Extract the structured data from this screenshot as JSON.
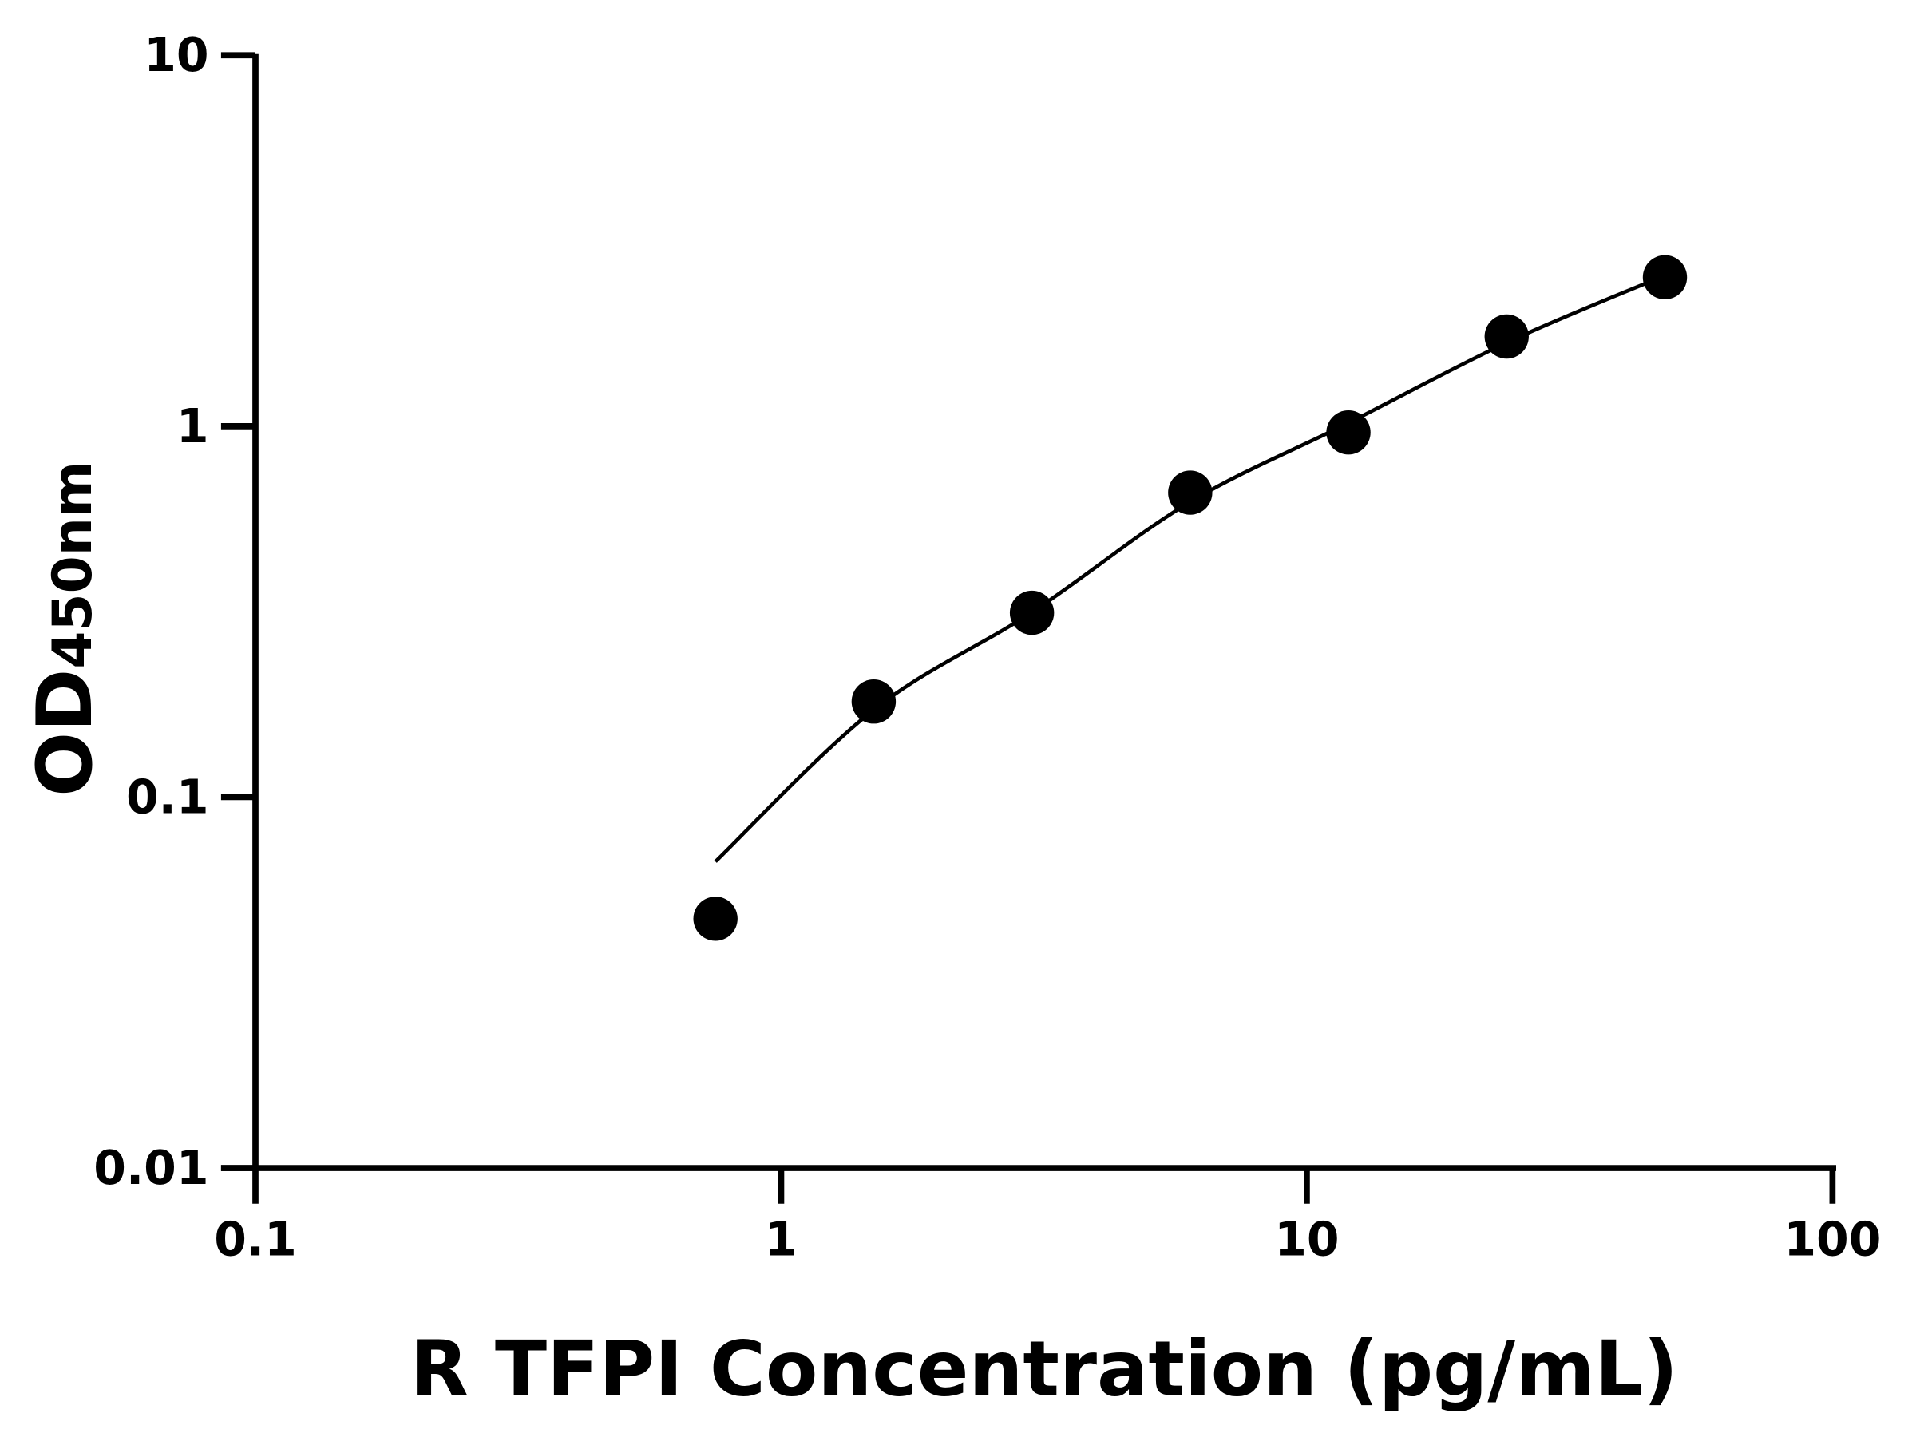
{
  "chart_data": {
    "type": "scatter",
    "title": "",
    "xlabel": "R TFPI Concentration (pg/mL)",
    "ylabel_main": "OD",
    "ylabel_sub": "450nm",
    "x_scale": "log",
    "y_scale": "log",
    "xlim": [
      0.1,
      100
    ],
    "ylim": [
      0.01,
      10
    ],
    "x_ticks": [
      0.1,
      1,
      10,
      100
    ],
    "x_tick_labels": [
      "0.1",
      "1",
      "10",
      "100"
    ],
    "y_ticks": [
      0.01,
      0.1,
      1,
      10
    ],
    "y_tick_labels": [
      "0.01",
      "0.1",
      "1",
      "10"
    ],
    "grid": false,
    "colors": {
      "points": "#000000",
      "curve": "#000000",
      "axes": "#000000"
    },
    "points": [
      {
        "x": 0.75,
        "y": 0.047
      },
      {
        "x": 1.5,
        "y": 0.181
      },
      {
        "x": 3,
        "y": 0.314
      },
      {
        "x": 6,
        "y": 0.662
      },
      {
        "x": 12,
        "y": 0.962
      },
      {
        "x": 24,
        "y": 1.745
      },
      {
        "x": 48,
        "y": 2.52
      }
    ],
    "fit_curve": [
      {
        "x": 0.75,
        "y": 0.067
      },
      {
        "x": 1.5,
        "y": 0.172
      },
      {
        "x": 3,
        "y": 0.315
      },
      {
        "x": 6,
        "y": 0.625
      },
      {
        "x": 12,
        "y": 1.02
      },
      {
        "x": 24,
        "y": 1.68
      },
      {
        "x": 48,
        "y": 2.55
      }
    ]
  }
}
